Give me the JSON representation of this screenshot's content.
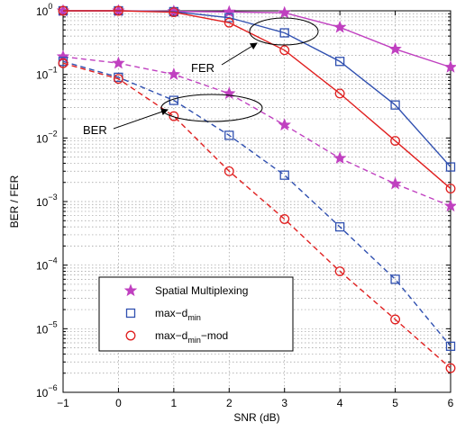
{
  "chart_data": {
    "type": "line",
    "xlabel": "SNR (dB)",
    "ylabel": "BER / FER",
    "xlim": [
      -1,
      6
    ],
    "ylim": [
      1e-06,
      1
    ],
    "yscale": "log",
    "grid": true,
    "x": [
      -1,
      0,
      1,
      2,
      3,
      4,
      5,
      6
    ],
    "x_tick_labels": [
      "−1",
      "0",
      "1",
      "2",
      "3",
      "4",
      "5",
      "6"
    ],
    "y_tick_labels": [
      {
        "mantissa": "10",
        "exp": "0"
      },
      {
        "mantissa": "10",
        "exp": "−1"
      },
      {
        "mantissa": "10",
        "exp": "−2"
      },
      {
        "mantissa": "10",
        "exp": "−3"
      },
      {
        "mantissa": "10",
        "exp": "−4"
      },
      {
        "mantissa": "10",
        "exp": "−5"
      },
      {
        "mantissa": "10",
        "exp": "−6"
      }
    ],
    "series": [
      {
        "name": "Spatial Multiplexing",
        "metric": "FER",
        "color": "#c040c0",
        "marker": "star",
        "dash": "solid",
        "values": [
          1.0,
          1.0,
          0.98,
          0.96,
          0.93,
          0.55,
          0.25,
          0.13
        ]
      },
      {
        "name": "Spatial Multiplexing",
        "metric": "BER",
        "color": "#c040c0",
        "marker": "star",
        "dash": "dashed",
        "values": [
          0.19,
          0.15,
          0.1,
          0.05,
          0.016,
          0.0048,
          0.0019,
          0.00085
        ]
      },
      {
        "name": "max-d_min",
        "metric": "FER",
        "color": "#3050b0",
        "marker": "square",
        "dash": "solid",
        "values": [
          1.0,
          1.0,
          0.97,
          0.78,
          0.45,
          0.16,
          0.033,
          0.0035
        ]
      },
      {
        "name": "max-d_min",
        "metric": "BER",
        "color": "#3050b0",
        "marker": "square",
        "dash": "dashed",
        "values": [
          0.16,
          0.09,
          0.039,
          0.011,
          0.0026,
          0.0004,
          6e-05,
          5.3e-06
        ]
      },
      {
        "name": "max-d_min-mod",
        "metric": "FER",
        "color": "#e02020",
        "marker": "circle",
        "dash": "solid",
        "values": [
          1.0,
          1.0,
          0.95,
          0.65,
          0.24,
          0.05,
          0.009,
          0.0016
        ]
      },
      {
        "name": "max-d_min-mod",
        "metric": "BER",
        "color": "#e02020",
        "marker": "circle",
        "dash": "dashed",
        "values": [
          0.15,
          0.085,
          0.022,
          0.003,
          0.00053,
          8e-05,
          1.4e-05,
          2.4e-06
        ]
      }
    ],
    "legend": {
      "placement": "lower-left",
      "entries": [
        {
          "marker": "star",
          "color": "#c040c0",
          "text": "Spatial Multiplexing"
        },
        {
          "marker": "square",
          "color": "#3050b0",
          "text_main": "max−d",
          "text_sub": "min"
        },
        {
          "marker": "circle",
          "color": "#e02020",
          "text_main": "max−d",
          "text_sub": "min",
          "text_tail": "−mod"
        }
      ]
    },
    "annotations": [
      {
        "label": "FER"
      },
      {
        "label": "BER"
      }
    ]
  }
}
